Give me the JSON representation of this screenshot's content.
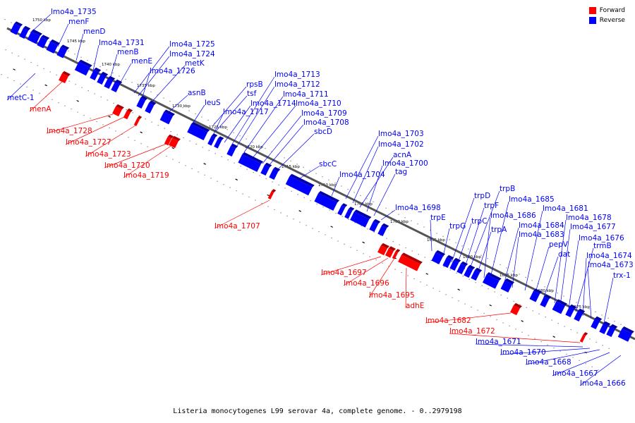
{
  "colors": {
    "forward": "#ff0000",
    "reverse": "#0000ff",
    "axis": "#555555"
  },
  "legend": [
    {
      "label": "Forward",
      "color": "#ff0000"
    },
    {
      "label": "Reverse",
      "color": "#0000ff"
    }
  ],
  "caption": "Listeria monocytogenes L99 serovar 4a, complete genome. - 0..2979198",
  "kbp_ticks": [
    "1750 kbp",
    "1745 kbp",
    "1740 kbp",
    "1735 kbp",
    "1730 kbp",
    "1725 kbp",
    "1720 kbp",
    "1715 kbp",
    "1710 kbp",
    "1705 kbp",
    "1700 kbp",
    "1695 kbp",
    "1690 kbp",
    "1685 kbp",
    "1680 kbp",
    "1675 kbp"
  ],
  "reverse_genes": [
    "lmo4a_1735",
    "menF",
    "menD",
    "lmo4a_1731",
    "menB",
    "menE",
    "lmo4a_1725",
    "lmo4a_1724",
    "metK",
    "lmo4a_1726",
    "asnB",
    "leuS",
    "rpsB",
    "tsf",
    "lmo4a_1717",
    "lmo4a_1714",
    "lmo4a_1713",
    "lmo4a_1712",
    "lmo4a_1711",
    "lmo4a_1710",
    "lmo4a_1709",
    "lmo4a_1708",
    "sbcD",
    "sbcC",
    "lmo4a_1704",
    "lmo4a_1703",
    "lmo4a_1702",
    "acnA",
    "lmo4a_1700",
    "tag",
    "lmo4a_1698",
    "trpE",
    "trpG",
    "trpD",
    "trpC",
    "trpF",
    "trpB",
    "trpA",
    "lmo4a_1686",
    "lmo4a_1685",
    "lmo4a_1684",
    "lmo4a_1683",
    "lmo4a_1681",
    "pepV",
    "dat",
    "lmo4a_1678",
    "lmo4a_1677",
    "lmo4a_1676",
    "trmB",
    "lmo4a_1674",
    "lmo4a_1673",
    "trx-1",
    "metC-1",
    "lmo4a_1671",
    "lmo4a_1670",
    "lmo4a_1668",
    "lmo4a_1667",
    "lmo4a_1666"
  ],
  "forward_genes": [
    "menA",
    "lmo4a_1728",
    "lmo4a_1727",
    "lmo4a_1723",
    "lmo4a_1720",
    "lmo4a_1719",
    "lmo4a_1707",
    "lmo4a_1697",
    "lmo4a_1696",
    "lmo4a_1695",
    "adhE",
    "lmo4a_1682",
    "lmo4a_1672"
  ]
}
